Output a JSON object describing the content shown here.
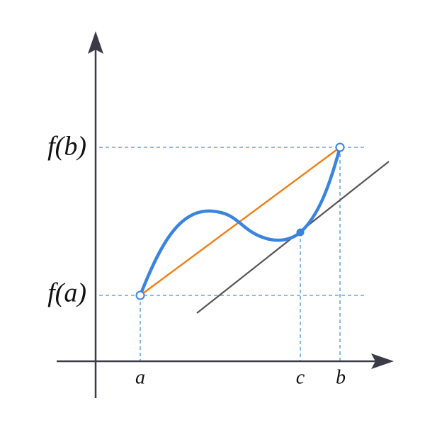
{
  "labels": {
    "fb": "f(b)",
    "fa": "f(a)",
    "a": "a",
    "c": "c",
    "b": "b"
  }
}
